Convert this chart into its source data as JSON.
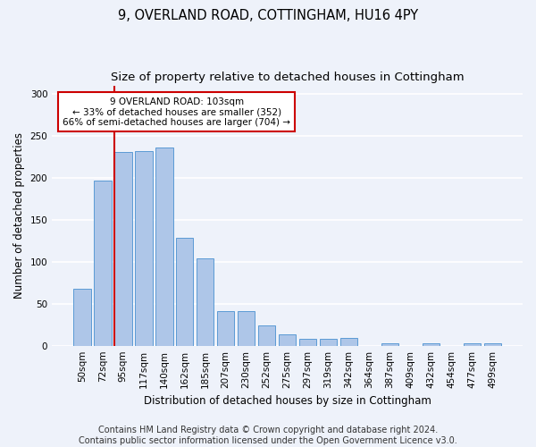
{
  "title": "9, OVERLAND ROAD, COTTINGHAM, HU16 4PY",
  "subtitle": "Size of property relative to detached houses in Cottingham",
  "xlabel": "Distribution of detached houses by size in Cottingham",
  "ylabel": "Number of detached properties",
  "bar_values": [
    68,
    197,
    231,
    232,
    236,
    129,
    104,
    41,
    41,
    24,
    13,
    8,
    8,
    9,
    0,
    3,
    0,
    3,
    0,
    3,
    3
  ],
  "bar_labels": [
    "50sqm",
    "72sqm",
    "95sqm",
    "117sqm",
    "140sqm",
    "162sqm",
    "185sqm",
    "207sqm",
    "230sqm",
    "252sqm",
    "275sqm",
    "297sqm",
    "319sqm",
    "342sqm",
    "364sqm",
    "387sqm",
    "409sqm",
    "432sqm",
    "454sqm",
    "477sqm",
    "499sqm"
  ],
  "bar_color": "#aec6e8",
  "bar_edge_color": "#5b9bd5",
  "highlight_color": "#cc0000",
  "vline_bar_index": 2,
  "annotation_text": "9 OVERLAND ROAD: 103sqm\n← 33% of detached houses are smaller (352)\n66% of semi-detached houses are larger (704) →",
  "annotation_box_color": "white",
  "annotation_box_edge_color": "#cc0000",
  "ylim": [
    0,
    310
  ],
  "yticks": [
    0,
    50,
    100,
    150,
    200,
    250,
    300
  ],
  "footer_line1": "Contains HM Land Registry data © Crown copyright and database right 2024.",
  "footer_line2": "Contains public sector information licensed under the Open Government Licence v3.0.",
  "bg_color": "#eef2fa",
  "plot_bg_color": "#eef2fa",
  "grid_color": "#ffffff",
  "title_fontsize": 10.5,
  "subtitle_fontsize": 9.5,
  "label_fontsize": 8.5,
  "tick_fontsize": 7.5,
  "footer_fontsize": 7
}
